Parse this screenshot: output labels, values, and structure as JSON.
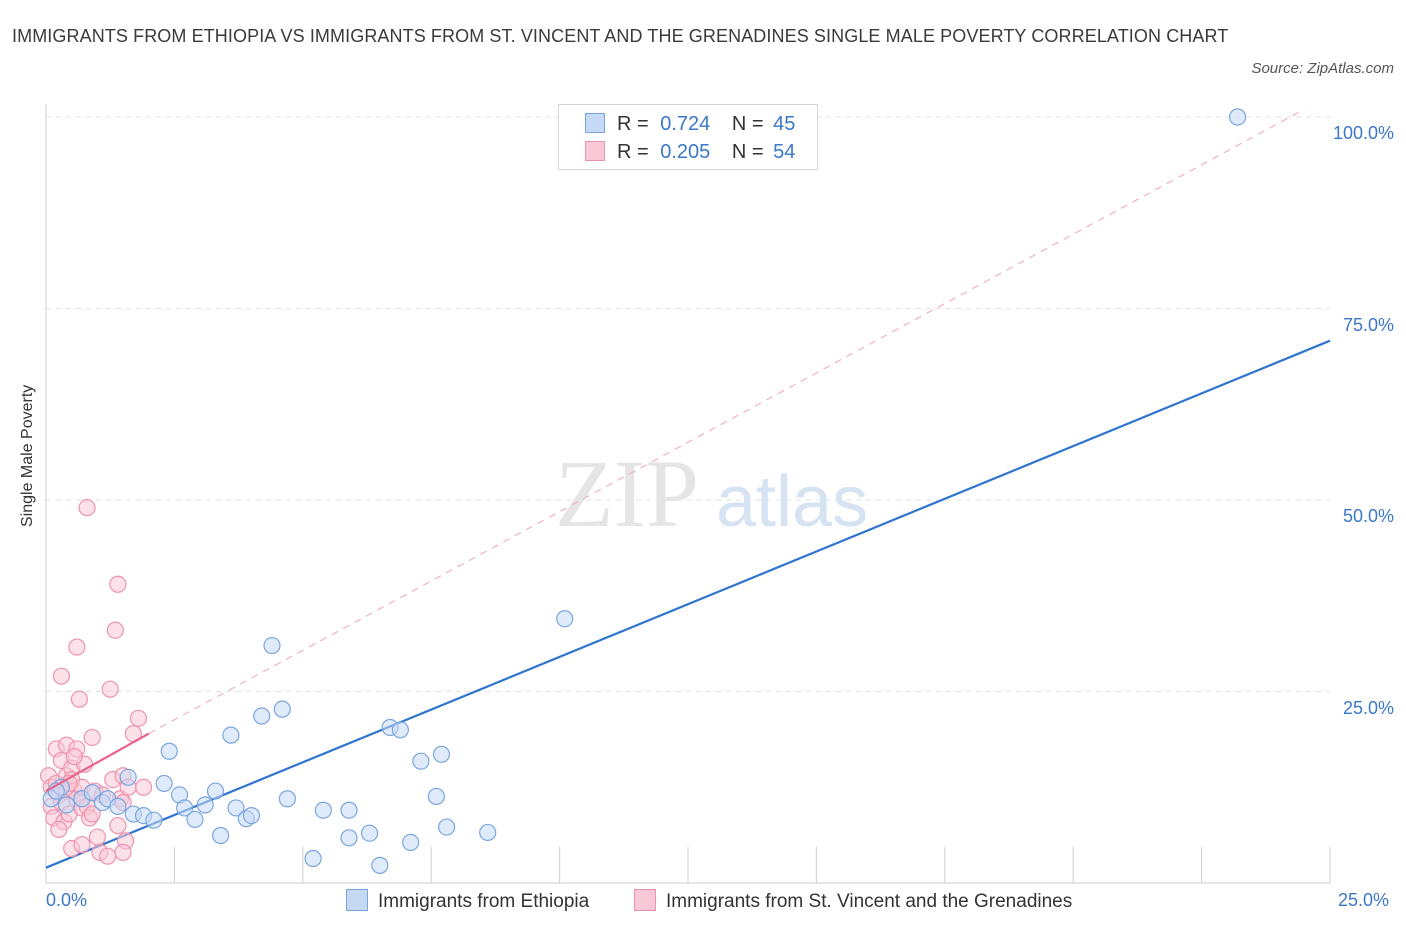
{
  "title": "IMMIGRANTS FROM ETHIOPIA VS IMMIGRANTS FROM ST. VINCENT AND THE GRENADINES SINGLE MALE POVERTY CORRELATION CHART",
  "source": "Source: ZipAtlas.com",
  "watermark": {
    "zip": "ZIP",
    "atlas": "atlas"
  },
  "legend": {
    "r_label": "R =",
    "n_label": "N =",
    "ethiopia": {
      "r": "0.724",
      "n": "45"
    },
    "stvincent": {
      "r": "0.205",
      "n": "54"
    }
  },
  "bottom_legend": {
    "ethiopia": "Immigrants from Ethiopia",
    "stvincent": "Immigrants from St. Vincent and the Grenadines"
  },
  "colors": {
    "ethiopia_fill": "#c5d9f5",
    "ethiopia_stroke": "#7aa6de",
    "ethiopia_line": "#2f74cf",
    "stvincent_fill": "#f9c8d6",
    "stvincent_stroke": "#ee93ae",
    "stvincent_line": "#e8628b",
    "tick_text": "#3a78c8",
    "grid": "#e2e2e2"
  },
  "chart_data": {
    "type": "scatter",
    "title": "IMMIGRANTS FROM ETHIOPIA VS IMMIGRANTS FROM ST. VINCENT AND THE GRENADINES SINGLE MALE POVERTY CORRELATION CHART",
    "xlabel": "",
    "ylabel": "Single Male Poverty",
    "xlim": [
      0,
      25
    ],
    "ylim": [
      0,
      100
    ],
    "x_tick_labels": [
      "0.0%",
      "25.0%"
    ],
    "y_ticks": [
      25,
      50,
      75,
      100
    ],
    "y_tick_labels": [
      "25.0%",
      "50.0%",
      "75.0%",
      "100.0%"
    ],
    "series": [
      {
        "name": "Immigrants from Ethiopia",
        "r": 0.724,
        "n": 45,
        "trend": {
          "x": [
            0,
            25
          ],
          "y": [
            2.0,
            70.8
          ]
        },
        "points": [
          [
            0.1,
            11.0
          ],
          [
            0.3,
            12.5
          ],
          [
            0.4,
            10.2
          ],
          [
            0.7,
            11.0
          ],
          [
            0.9,
            11.8
          ],
          [
            1.1,
            10.5
          ],
          [
            1.2,
            11.0
          ],
          [
            1.4,
            10.0
          ],
          [
            1.6,
            13.8
          ],
          [
            1.7,
            9.0
          ],
          [
            1.9,
            8.8
          ],
          [
            2.1,
            8.2
          ],
          [
            2.3,
            13.0
          ],
          [
            2.4,
            17.2
          ],
          [
            2.6,
            11.5
          ],
          [
            2.7,
            9.8
          ],
          [
            2.9,
            8.3
          ],
          [
            3.1,
            10.2
          ],
          [
            3.3,
            12.0
          ],
          [
            3.4,
            6.2
          ],
          [
            3.6,
            19.3
          ],
          [
            3.7,
            9.8
          ],
          [
            3.9,
            8.4
          ],
          [
            4.0,
            8.8
          ],
          [
            4.2,
            21.8
          ],
          [
            4.4,
            31.0
          ],
          [
            4.6,
            22.7
          ],
          [
            4.7,
            11.0
          ],
          [
            5.2,
            3.2
          ],
          [
            5.4,
            9.5
          ],
          [
            5.9,
            5.9
          ],
          [
            5.9,
            9.5
          ],
          [
            6.3,
            6.5
          ],
          [
            6.5,
            2.3
          ],
          [
            6.7,
            20.3
          ],
          [
            6.9,
            20.0
          ],
          [
            7.1,
            5.3
          ],
          [
            7.3,
            15.9
          ],
          [
            7.6,
            11.3
          ],
          [
            7.7,
            16.8
          ],
          [
            7.8,
            7.3
          ],
          [
            8.6,
            6.6
          ],
          [
            10.1,
            34.5
          ],
          [
            23.2,
            100.0
          ],
          [
            0.2,
            12.0
          ]
        ]
      },
      {
        "name": "Immigrants from St. Vincent and the Grenadines",
        "r": 0.205,
        "n": 54,
        "trend": {
          "x": [
            0,
            2.0
          ],
          "y": [
            12.0,
            19.5
          ]
        },
        "trend_dashed": {
          "x": [
            2.0,
            24.5
          ],
          "y": [
            19.5,
            101.0
          ]
        },
        "points": [
          [
            0.05,
            14.0
          ],
          [
            0.1,
            12.5
          ],
          [
            0.1,
            10.0
          ],
          [
            0.15,
            8.5
          ],
          [
            0.2,
            17.5
          ],
          [
            0.2,
            13.0
          ],
          [
            0.25,
            11.5
          ],
          [
            0.3,
            27.0
          ],
          [
            0.3,
            16.0
          ],
          [
            0.3,
            10.5
          ],
          [
            0.35,
            8.0
          ],
          [
            0.4,
            14.0
          ],
          [
            0.4,
            12.0
          ],
          [
            0.4,
            18.0
          ],
          [
            0.45,
            9.0
          ],
          [
            0.5,
            15.0
          ],
          [
            0.5,
            13.5
          ],
          [
            0.5,
            4.5
          ],
          [
            0.55,
            12.0
          ],
          [
            0.6,
            17.5
          ],
          [
            0.6,
            11.0
          ],
          [
            0.6,
            30.8
          ],
          [
            0.65,
            24.0
          ],
          [
            0.7,
            9.8
          ],
          [
            0.7,
            12.5
          ],
          [
            0.75,
            15.5
          ],
          [
            0.8,
            49.0
          ],
          [
            0.8,
            10.0
          ],
          [
            0.85,
            8.5
          ],
          [
            0.9,
            19.0
          ],
          [
            0.9,
            9.0
          ],
          [
            0.95,
            12.0
          ],
          [
            1.0,
            6.0
          ],
          [
            1.05,
            4.0
          ],
          [
            1.1,
            11.5
          ],
          [
            1.2,
            3.5
          ],
          [
            1.25,
            25.3
          ],
          [
            1.3,
            13.5
          ],
          [
            1.35,
            33.0
          ],
          [
            1.4,
            7.5
          ],
          [
            1.45,
            11.0
          ],
          [
            1.5,
            10.5
          ],
          [
            1.55,
            5.5
          ],
          [
            1.5,
            4.0
          ],
          [
            1.4,
            39.0
          ],
          [
            1.5,
            14.0
          ],
          [
            1.6,
            12.5
          ],
          [
            1.7,
            19.5
          ],
          [
            1.8,
            21.5
          ],
          [
            1.9,
            12.5
          ],
          [
            0.25,
            7.0
          ],
          [
            0.45,
            13.0
          ],
          [
            0.55,
            16.5
          ],
          [
            0.7,
            5.0
          ]
        ]
      }
    ]
  }
}
